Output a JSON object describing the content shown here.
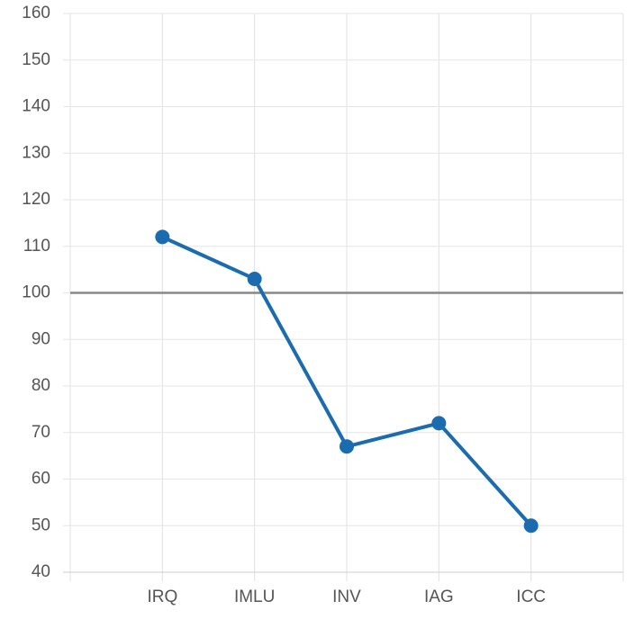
{
  "chart_data": {
    "type": "line",
    "categories": [
      "IRQ",
      "IMLU",
      "INV",
      "IAG",
      "ICC"
    ],
    "series": [
      {
        "color": "#1a6bb0",
        "values": [
          112,
          103,
          67,
          72,
          50
        ]
      }
    ],
    "ylim": [
      40,
      160
    ],
    "yticks": [
      40,
      50,
      60,
      70,
      80,
      90,
      100,
      110,
      120,
      130,
      140,
      150,
      160
    ],
    "grid": true,
    "reference_line": {
      "value": 100,
      "color": "#888888"
    }
  }
}
